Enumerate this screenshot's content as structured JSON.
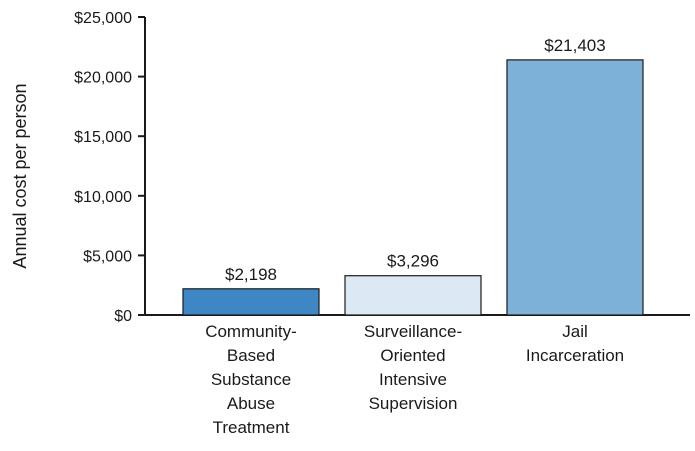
{
  "chart_data": {
    "type": "bar",
    "title": "",
    "xlabel": "",
    "ylabel": "Annual cost per person",
    "ylim": [
      0,
      25000
    ],
    "yticks": [
      0,
      5000,
      10000,
      15000,
      20000,
      25000
    ],
    "ytick_labels": [
      "$0",
      "$5,000",
      "$10,000",
      "$15,000",
      "$20,000",
      "$25,000"
    ],
    "grid": false,
    "legend": "none",
    "categories": [
      [
        "Community-",
        "Based",
        "Substance",
        "Abuse",
        "Treatment"
      ],
      [
        "Surveillance-",
        "Oriented",
        "Intensive",
        "Supervision"
      ],
      [
        "Jail",
        "Incarceration"
      ]
    ],
    "values": [
      2198,
      3296,
      21403
    ],
    "data_labels": [
      "$2,198",
      "$3,296",
      "$21,403"
    ],
    "colors": [
      "#3d87c4",
      "#dce8f4",
      "#7eb1d8"
    ],
    "bar_outline": "#1a1a1a"
  }
}
